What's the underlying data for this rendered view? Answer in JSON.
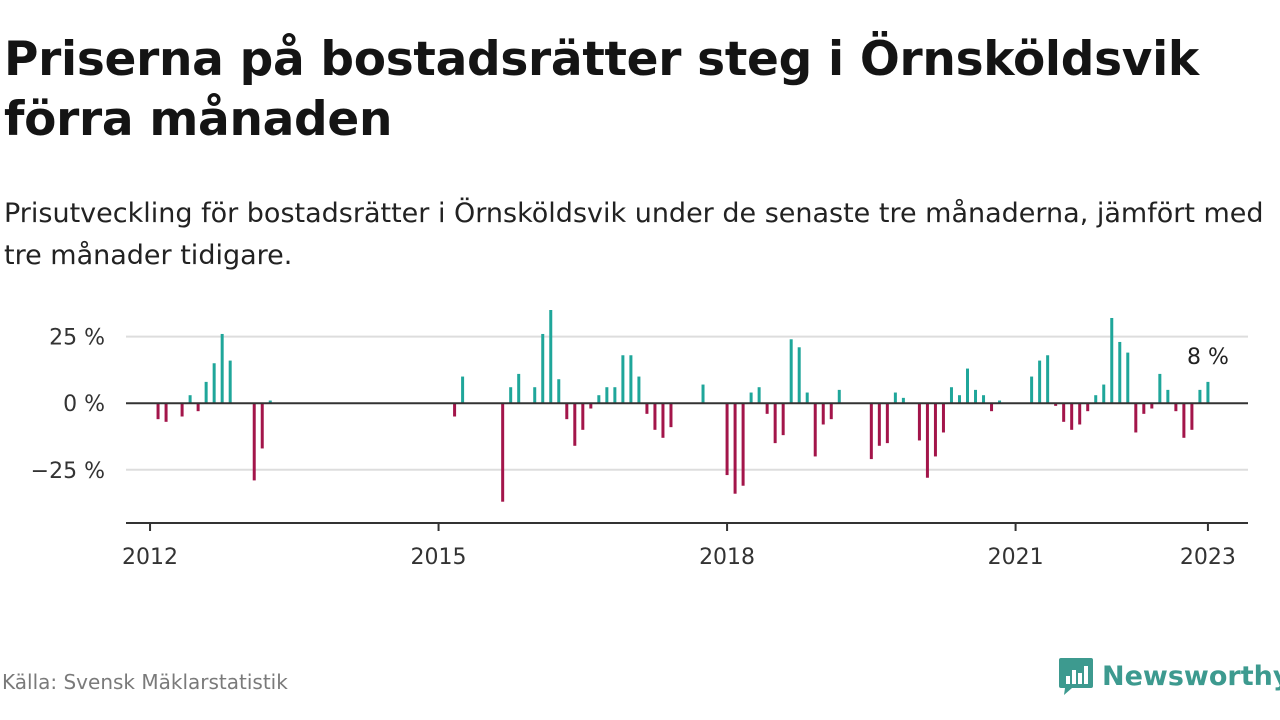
{
  "header": {
    "title": "Priserna på bostadsrätter steg i Örnsköldsvik förra månaden",
    "subtitle": "Prisutveckling för bostadsrätter i Örnsköldsvik under de senaste tre månaderna, jämfört med tre månader tidigare."
  },
  "footer": {
    "source": "Källa: Svensk Mäklarstatistik",
    "brand": "Newsworthy"
  },
  "colors": {
    "positive": "#1fa69a",
    "negative": "#a3154a",
    "axis": "#333333",
    "grid": "#dddddd",
    "brand": "#3d9a8f"
  },
  "chart_data": {
    "type": "bar",
    "x_domain": [
      "2011-10",
      "2023-06"
    ],
    "y_domain": [
      -45,
      35
    ],
    "y_ticks": [
      25,
      0,
      -25
    ],
    "y_tick_labels": [
      "25 %",
      "0 %",
      "−25 %"
    ],
    "x_ticks": [
      "2012-01",
      "2015-01",
      "2018-01",
      "2021-01",
      "2023-01"
    ],
    "x_tick_labels": [
      "2012",
      "2015",
      "2018",
      "2021",
      "2023"
    ],
    "annotation": {
      "x": "2023-01",
      "value": 8,
      "label": "8 %"
    },
    "x": [
      "2012-02",
      "2012-03",
      "2012-05",
      "2012-06",
      "2012-07",
      "2012-08",
      "2012-09",
      "2012-10",
      "2012-11",
      "2013-02",
      "2013-03",
      "2013-04",
      "2015-03",
      "2015-04",
      "2015-09",
      "2015-10",
      "2015-11",
      "2016-01",
      "2016-02",
      "2016-03",
      "2016-04",
      "2016-05",
      "2016-06",
      "2016-07",
      "2016-08",
      "2016-09",
      "2016-10",
      "2016-11",
      "2016-12",
      "2017-01",
      "2017-02",
      "2017-03",
      "2017-04",
      "2017-05",
      "2017-06",
      "2017-10",
      "2018-01",
      "2018-02",
      "2018-03",
      "2018-04",
      "2018-05",
      "2018-06",
      "2018-07",
      "2018-08",
      "2018-09",
      "2018-10",
      "2018-11",
      "2018-12",
      "2019-01",
      "2019-02",
      "2019-03",
      "2019-07",
      "2019-08",
      "2019-09",
      "2019-10",
      "2019-11",
      "2020-01",
      "2020-02",
      "2020-03",
      "2020-04",
      "2020-05",
      "2020-06",
      "2020-07",
      "2020-08",
      "2020-09",
      "2020-10",
      "2020-11",
      "2021-03",
      "2021-04",
      "2021-05",
      "2021-06",
      "2021-07",
      "2021-08",
      "2021-09",
      "2021-10",
      "2021-11",
      "2021-12",
      "2022-01",
      "2022-02",
      "2022-03",
      "2022-04",
      "2022-05",
      "2022-06",
      "2022-07",
      "2022-08",
      "2022-09",
      "2022-10",
      "2022-11",
      "2022-12",
      "2023-01"
    ],
    "values": [
      -6,
      -7,
      -5,
      3,
      -3,
      8,
      15,
      26,
      16,
      -29,
      -17,
      1,
      -5,
      10,
      -37,
      6,
      11,
      6,
      26,
      35,
      9,
      -6,
      -16,
      -10,
      -2,
      3,
      6,
      6,
      18,
      18,
      10,
      -4,
      -10,
      -13,
      -9,
      7,
      -27,
      -34,
      -31,
      4,
      6,
      -4,
      -15,
      -12,
      24,
      21,
      4,
      -20,
      -8,
      -6,
      5,
      -21,
      -16,
      -15,
      4,
      2,
      -14,
      -28,
      -20,
      -11,
      6,
      3,
      13,
      5,
      3,
      -3,
      1,
      10,
      16,
      18,
      -1,
      -7,
      -10,
      -8,
      -3,
      3,
      7,
      32,
      23,
      19,
      -11,
      -4,
      -2,
      11,
      5,
      -3,
      -13,
      -10,
      5,
      8
    ]
  }
}
